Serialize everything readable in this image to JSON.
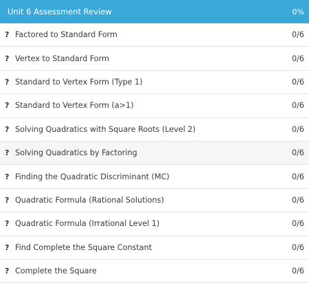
{
  "header": {
    "title": "Unit 6 Assessment Review",
    "percent": "0%"
  },
  "items": [
    {
      "icon": "?",
      "label": "Factored to Standard Form",
      "score": "0/6"
    },
    {
      "icon": "?",
      "label": "Vertex to Standard Form",
      "score": "0/6"
    },
    {
      "icon": "?",
      "label": "Standard to Vertex Form (Type 1)",
      "score": "0/6"
    },
    {
      "icon": "?",
      "label": "Standard to Vertex Form (a>1)",
      "score": "0/6"
    },
    {
      "icon": "?",
      "label": "Solving Quadratics with Square Roots (Level 2)",
      "score": "0/6"
    },
    {
      "icon": "?",
      "label": "Solving Quadratics by Factoring",
      "score": "0/6"
    },
    {
      "icon": "?",
      "label": "Finding the Quadratic Discriminant (MC)",
      "score": "0/6"
    },
    {
      "icon": "?",
      "label": "Quadratic Formula (Rational Solutions)",
      "score": "0/6"
    },
    {
      "icon": "?",
      "label": "Quadratic Formula (Irrational Level 1)",
      "score": "0/6"
    },
    {
      "icon": "?",
      "label": "Find Complete the Square Constant",
      "score": "0/6"
    },
    {
      "icon": "?",
      "label": "Complete the Square",
      "score": "0/6"
    }
  ]
}
